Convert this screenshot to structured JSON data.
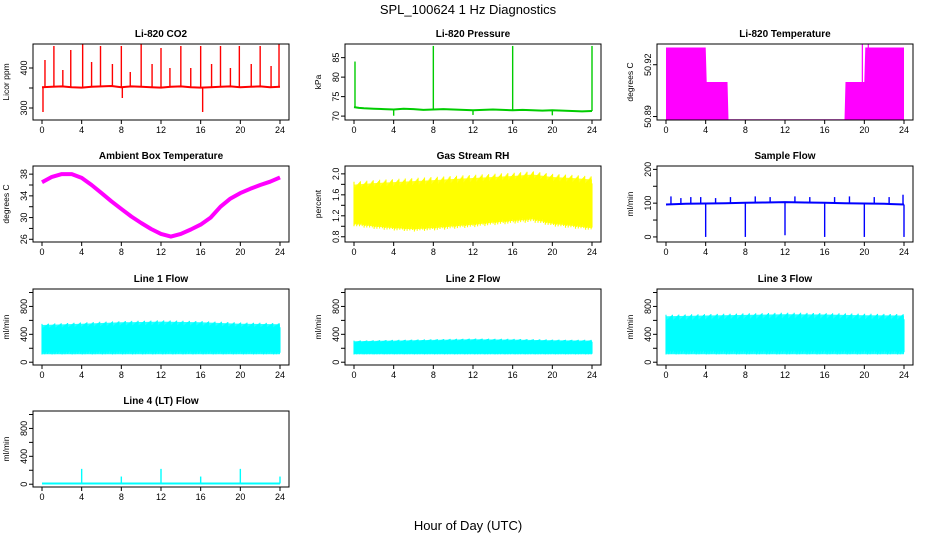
{
  "page": {
    "title": "SPL_100624  1 Hz Diagnostics",
    "xlabel": "Hour of Day (UTC)"
  },
  "chart_data": [
    {
      "type": "line",
      "title": "Li-820 CO2",
      "ylabel": "Licor ppm",
      "color": "#ff0000",
      "xlim": [
        0,
        24
      ],
      "xticks": [
        0,
        4,
        8,
        12,
        16,
        20,
        24
      ],
      "ylim": [
        270,
        460
      ],
      "yticks": [
        300,
        350,
        400
      ],
      "ytick_labels": [
        "300",
        "",
        "400"
      ],
      "baseline": 350,
      "x": [
        0,
        1,
        2,
        3,
        4,
        5,
        6,
        7,
        8,
        9,
        10,
        11,
        12,
        13,
        14,
        15,
        16,
        17,
        18,
        19,
        20,
        21,
        22,
        23,
        24
      ],
      "y": [
        352,
        353,
        354,
        352,
        351,
        353,
        354,
        355,
        352,
        354,
        353,
        352,
        351,
        353,
        354,
        352,
        351,
        352,
        353,
        354,
        352,
        353,
        354,
        352,
        353
      ],
      "spikes_up": [
        [
          0.3,
          420
        ],
        [
          1.2,
          455
        ],
        [
          2.1,
          395
        ],
        [
          2.9,
          445
        ],
        [
          4.1,
          460
        ],
        [
          5.0,
          415
        ],
        [
          5.9,
          455
        ],
        [
          7.1,
          410
        ],
        [
          8.0,
          455
        ],
        [
          8.9,
          390
        ],
        [
          10.0,
          460
        ],
        [
          11.1,
          410
        ],
        [
          12.0,
          450
        ],
        [
          12.9,
          400
        ],
        [
          14.0,
          455
        ],
        [
          15.0,
          400
        ],
        [
          16.0,
          455
        ],
        [
          17.1,
          410
        ],
        [
          18.0,
          455
        ],
        [
          19.0,
          400
        ],
        [
          19.9,
          455
        ],
        [
          21.1,
          410
        ],
        [
          22.0,
          455
        ],
        [
          23.1,
          405
        ],
        [
          23.9,
          460
        ]
      ],
      "spikes_down": [
        [
          0.1,
          290
        ],
        [
          8.1,
          325
        ],
        [
          16.2,
          290
        ]
      ]
    },
    {
      "type": "line",
      "title": "Li-820 Pressure",
      "ylabel": "kPa",
      "color": "#00cc00",
      "xlim": [
        0,
        24
      ],
      "xticks": [
        0,
        4,
        8,
        12,
        16,
        20,
        24
      ],
      "ylim": [
        69,
        88.5
      ],
      "yticks": [
        70,
        75,
        80,
        85
      ],
      "ytick_labels": [
        "70",
        "75",
        "80",
        "85"
      ],
      "x": [
        0,
        0.5,
        1,
        2,
        3,
        4,
        5,
        6,
        7,
        8,
        9,
        10,
        11,
        12,
        13,
        14,
        15,
        16,
        17,
        18,
        19,
        20,
        21,
        22,
        23,
        24
      ],
      "y": [
        72.3,
        72.1,
        72.0,
        71.9,
        71.8,
        71.7,
        71.9,
        71.8,
        71.6,
        71.7,
        71.8,
        71.7,
        71.6,
        71.5,
        71.6,
        71.7,
        71.6,
        71.5,
        71.6,
        71.5,
        71.4,
        71.5,
        71.4,
        71.3,
        71.2,
        71.3
      ],
      "spikes_up": [
        [
          0.1,
          84
        ],
        [
          8.0,
          88
        ],
        [
          16.0,
          88
        ],
        [
          24.0,
          88
        ]
      ],
      "spikes_down": [
        [
          4.0,
          70.1
        ],
        [
          12.0,
          70.3
        ],
        [
          20.0,
          70.2
        ]
      ]
    },
    {
      "type": "area",
      "title": "Li-820 Temperature",
      "ylabel": "degrees C",
      "color": "#ff00ff",
      "xlim": [
        0,
        24
      ],
      "xticks": [
        0,
        4,
        8,
        12,
        16,
        20,
        24
      ],
      "ylim": [
        50.888,
        50.932
      ],
      "yticks": [
        50.89,
        50.92
      ],
      "ytick_labels": [
        "50.89",
        "50.92"
      ],
      "floor": 50.888,
      "x": [
        0,
        4.0,
        4.1,
        6.2,
        6.3,
        18.0,
        18.1,
        20.0,
        20.1,
        24
      ],
      "y": [
        50.93,
        50.93,
        50.91,
        50.91,
        50.888,
        50.888,
        50.91,
        50.91,
        50.93,
        50.93
      ]
    },
    {
      "type": "line",
      "title": "Ambient Box Temperature",
      "ylabel": "degrees C",
      "color": "#ff00ff",
      "xlim": [
        0,
        24
      ],
      "xticks": [
        0,
        4,
        8,
        12,
        16,
        20,
        24
      ],
      "ylim": [
        25.5,
        39.5
      ],
      "yticks": [
        26,
        28,
        30,
        32,
        34,
        36,
        38
      ],
      "ytick_labels": [
        "26",
        "",
        "30",
        "",
        "34",
        "",
        "38"
      ],
      "x": [
        0,
        1,
        2,
        3,
        4,
        5,
        6,
        7,
        8,
        9,
        10,
        11,
        12,
        13,
        14,
        15,
        16,
        17,
        18,
        19,
        20,
        21,
        22,
        23,
        24
      ],
      "y": [
        36.5,
        37.5,
        38.0,
        38.0,
        37.3,
        36.0,
        34.5,
        33.0,
        31.6,
        30.2,
        29.0,
        27.9,
        27.0,
        26.5,
        27.0,
        27.8,
        28.7,
        30.0,
        32.0,
        33.5,
        34.5,
        35.3,
        36.0,
        36.6,
        37.4
      ]
    },
    {
      "type": "area",
      "title": "Gas Stream RH",
      "ylabel": "percent",
      "color": "#ffff00",
      "xlim": [
        0,
        24
      ],
      "xticks": [
        0,
        4,
        8,
        12,
        16,
        20,
        24
      ],
      "ylim": [
        0.7,
        2.15
      ],
      "yticks": [
        0.8,
        1.0,
        1.2,
        1.4,
        1.6,
        1.8,
        2.0
      ],
      "ytick_labels": [
        "0.8",
        "",
        "1.2",
        "",
        "1.6",
        "",
        "2.0"
      ],
      "x": [
        0,
        2,
        4,
        6,
        8,
        10,
        12,
        14,
        16,
        18,
        20,
        22,
        24
      ],
      "y_high": [
        1.85,
        1.88,
        1.9,
        1.92,
        1.94,
        1.96,
        1.98,
        2.0,
        2.02,
        2.05,
        2.0,
        1.98,
        1.95
      ],
      "y_low": [
        1.0,
        0.95,
        0.92,
        0.9,
        0.92,
        0.95,
        0.98,
        1.02,
        1.05,
        1.08,
        1.0,
        0.96,
        0.92
      ]
    },
    {
      "type": "line",
      "title": "Sample Flow",
      "ylabel": "ml/min",
      "color": "#0000ff",
      "xlim": [
        0,
        24
      ],
      "xticks": [
        0,
        4,
        8,
        12,
        16,
        20,
        24
      ],
      "ylim": [
        -15,
        210
      ],
      "yticks": [
        0,
        50,
        100,
        150,
        200
      ],
      "ytick_labels": [
        "0",
        "",
        "100",
        "",
        "200"
      ],
      "x": [
        0,
        2,
        4,
        6,
        8,
        10,
        12,
        14,
        16,
        18,
        20,
        22,
        24
      ],
      "y": [
        96,
        98,
        99,
        100,
        101,
        102,
        103,
        102,
        101,
        100,
        99,
        98,
        96
      ],
      "spikes_down": [
        [
          4.0,
          0
        ],
        [
          8.0,
          0
        ],
        [
          12.0,
          5
        ],
        [
          16.0,
          0
        ],
        [
          20.0,
          0
        ],
        [
          24.0,
          0
        ]
      ],
      "spikes_up": [
        [
          0.5,
          120
        ],
        [
          1.5,
          115
        ],
        [
          2.5,
          118
        ],
        [
          3.5,
          118
        ],
        [
          5.0,
          115
        ],
        [
          6.5,
          118
        ],
        [
          9.0,
          120
        ],
        [
          10.5,
          118
        ],
        [
          13.0,
          120
        ],
        [
          14.5,
          118
        ],
        [
          17.0,
          118
        ],
        [
          18.5,
          120
        ],
        [
          21.0,
          118
        ],
        [
          22.5,
          118
        ],
        [
          23.9,
          125
        ]
      ]
    },
    {
      "type": "area",
      "title": "Line 1 Flow",
      "ylabel": "ml/min",
      "color": "#00ffff",
      "xlim": [
        0,
        24
      ],
      "xticks": [
        0,
        4,
        8,
        12,
        16,
        20,
        24
      ],
      "ylim": [
        -40,
        1050
      ],
      "yticks": [
        0,
        200,
        400,
        600,
        800,
        1000
      ],
      "ytick_labels": [
        "0",
        "",
        "400",
        "",
        "800",
        ""
      ],
      "x": [
        0,
        4,
        8,
        12,
        16,
        20,
        24
      ],
      "y_high": [
        550,
        570,
        590,
        600,
        590,
        570,
        560
      ],
      "y_low": [
        110,
        110,
        110,
        110,
        110,
        110,
        110
      ]
    },
    {
      "type": "area",
      "title": "Line 2 Flow",
      "ylabel": "ml/min",
      "color": "#00ffff",
      "xlim": [
        0,
        24
      ],
      "xticks": [
        0,
        4,
        8,
        12,
        16,
        20,
        24
      ],
      "ylim": [
        -40,
        1050
      ],
      "yticks": [
        0,
        200,
        400,
        600,
        800,
        1000
      ],
      "ytick_labels": [
        "0",
        "",
        "400",
        "",
        "800",
        ""
      ],
      "x": [
        0,
        4,
        8,
        12,
        16,
        20,
        24
      ],
      "y_high": [
        310,
        320,
        330,
        340,
        335,
        325,
        320
      ],
      "y_low": [
        110,
        110,
        110,
        110,
        110,
        110,
        110
      ]
    },
    {
      "type": "area",
      "title": "Line 3 Flow",
      "ylabel": "ml/min",
      "color": "#00ffff",
      "xlim": [
        0,
        24
      ],
      "xticks": [
        0,
        4,
        8,
        12,
        16,
        20,
        24
      ],
      "ylim": [
        -40,
        1050
      ],
      "yticks": [
        0,
        200,
        400,
        600,
        800,
        1000
      ],
      "ytick_labels": [
        "0",
        "",
        "400",
        "",
        "800",
        ""
      ],
      "x": [
        0,
        4,
        8,
        12,
        16,
        20,
        24
      ],
      "y_high": [
        680,
        690,
        700,
        710,
        705,
        695,
        690
      ],
      "y_low": [
        110,
        110,
        110,
        110,
        110,
        110,
        110
      ]
    },
    {
      "type": "line",
      "title": "Line 4 (LT) Flow",
      "ylabel": "ml/min",
      "color": "#00ffff",
      "xlim": [
        0,
        24
      ],
      "xticks": [
        0,
        4,
        8,
        12,
        16,
        20,
        24
      ],
      "ylim": [
        -40,
        1050
      ],
      "yticks": [
        0,
        200,
        400,
        600,
        800,
        1000
      ],
      "ytick_labels": [
        "0",
        "",
        "400",
        "",
        "800",
        ""
      ],
      "x": [
        0,
        24
      ],
      "y": [
        10,
        10
      ],
      "spikes_up": [
        [
          4.0,
          220
        ],
        [
          8.0,
          110
        ],
        [
          12.0,
          220
        ],
        [
          16.0,
          110
        ],
        [
          20.0,
          220
        ],
        [
          24.0,
          110
        ]
      ]
    }
  ]
}
